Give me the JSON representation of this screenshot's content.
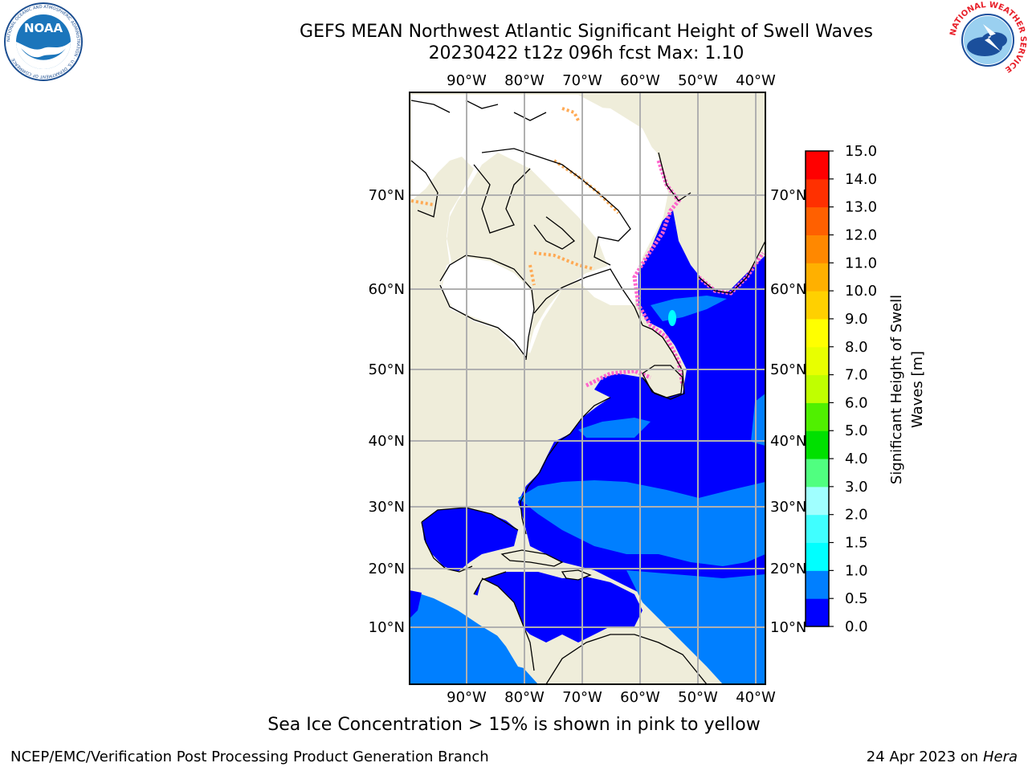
{
  "header": {
    "title_line1": "GEFS MEAN Northwest Atlantic Significant Height of Swell Waves",
    "title_line2": "20230422 t12z 096h fcst   Max: 1.10"
  },
  "logos": {
    "left": "NOAA",
    "left_ring_text": "NATIONAL OCEANIC AND ATMOSPHERIC ADMINISTRATION · U.S. DEPARTMENT OF COMMERCE",
    "right_ring_text": "NATIONAL WEATHER SERVICE"
  },
  "map": {
    "lon_labels": [
      "90°W",
      "80°W",
      "70°W",
      "60°W",
      "50°W",
      "40°W"
    ],
    "lat_labels": [
      "70°N",
      "60°N",
      "50°N",
      "40°N",
      "30°N",
      "20°N",
      "10°N"
    ],
    "colors": {
      "land": "#efedda",
      "ice_region": "#ffffff",
      "ocean_low": "#0000ff",
      "ocean_mid": "#007fff",
      "ocean_high": "#00ffff",
      "ice_edge": "#ff66cc",
      "ice_edge2": "#ffaa55",
      "grid": "#b0b0b0"
    }
  },
  "colorbar": {
    "label": "Significant Height of Swell Waves [m]",
    "label_line1": "Significant Height of Swell",
    "label_line2": "Waves [m]",
    "ticks": [
      "0.0",
      "0.5",
      "1.0",
      "1.5",
      "2.0",
      "3.0",
      "4.0",
      "5.0",
      "6.0",
      "7.0",
      "8.0",
      "9.0",
      "10.0",
      "11.0",
      "12.0",
      "13.0",
      "14.0",
      "15.0"
    ],
    "colors": [
      "#0000ff",
      "#007fff",
      "#00ffff",
      "#40ffff",
      "#a0ffff",
      "#50ff80",
      "#00e000",
      "#50f000",
      "#c0ff00",
      "#e8ff00",
      "#ffff00",
      "#ffd000",
      "#ffb000",
      "#ff8800",
      "#ff6000",
      "#ff3000",
      "#ff0000"
    ]
  },
  "footer": {
    "note": "Sea Ice Concentration > 15% is shown in pink to yellow",
    "credit": "NCEP/EMC/Verification Post Processing Product Generation Branch",
    "date": "24 Apr 2023 on",
    "machine": "Hera"
  }
}
